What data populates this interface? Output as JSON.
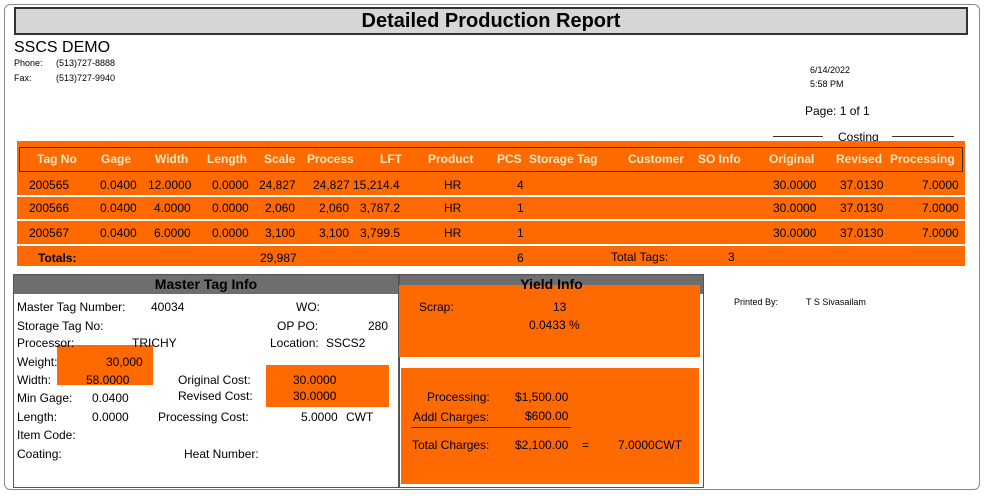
{
  "report": {
    "title": "Detailed Production Report",
    "company": "SSCS DEMO",
    "phone_label": "Phone:",
    "phone": "(513)727-8888",
    "fax_label": "Fax:",
    "fax": "(513)727-9940",
    "date": "6/14/2022",
    "time": "5:58 PM",
    "page": "Page: 1 of 1",
    "costing_label": "Costing"
  },
  "table": {
    "headers": {
      "tag_no": "Tag No",
      "gage": "Gage",
      "width": "Width",
      "length": "Length",
      "scale": "Scale",
      "process": "Process",
      "lft": "LFT",
      "product": "Product",
      "pcs": "PCS",
      "storage_tag": "Storage Tag",
      "customer": "Customer",
      "so_info": "SO Info",
      "original": "Original",
      "revised": "Revised",
      "processing": "Processing"
    },
    "rows": [
      {
        "tag_no": "200565",
        "gage": "0.0400",
        "width": "12.0000",
        "length": "0.0000",
        "scale": "24,827",
        "process": "24,827",
        "lft": "15,214.4",
        "product": "HR",
        "pcs": "4",
        "original": "30.0000",
        "revised": "37.0130",
        "processing": "7.0000"
      },
      {
        "tag_no": "200566",
        "gage": "0.0400",
        "width": "4.0000",
        "length": "0.0000",
        "scale": "2,060",
        "process": "2,060",
        "lft": "3,787.2",
        "product": "HR",
        "pcs": "1",
        "original": "30.0000",
        "revised": "37.0130",
        "processing": "7.0000"
      },
      {
        "tag_no": "200567",
        "gage": "0.0400",
        "width": "6.0000",
        "length": "0.0000",
        "scale": "3,100",
        "process": "3,100",
        "lft": "3,799.5",
        "product": "HR",
        "pcs": "1",
        "original": "30.0000",
        "revised": "37.0130",
        "processing": "7.0000"
      }
    ],
    "totals": {
      "label": "Totals:",
      "scale": "29,987",
      "pcs": "6",
      "total_tags_label": "Total Tags:",
      "total_tags": "3"
    }
  },
  "master": {
    "heading": "Master Tag Info",
    "master_tag_number_label": "Master Tag Number:",
    "master_tag_number": "40034",
    "wo_label": "WO:",
    "storage_tag_label": "Storage Tag No:",
    "op_po_label": "OP PO:",
    "op_po": "280",
    "processor_label": "Processor:",
    "processor": "TRICHY",
    "location_label": "Location:",
    "location": "SSCS2",
    "weight_label": "Weight:",
    "weight": "30,000",
    "width_label": "Width:",
    "width": "58.0000",
    "original_cost_label": "Original Cost:",
    "original_cost": "30.0000",
    "min_gage_label": "Min Gage:",
    "min_gage": "0.0400",
    "revised_cost_label": "Revised Cost:",
    "revised_cost": "30.0000",
    "length_label": "Length:",
    "length": "0.0000",
    "processing_cost_label": "Processing Cost:",
    "processing_cost": "5.0000",
    "processing_cost_unit": "CWT",
    "item_code_label": "Item Code:",
    "coating_label": "Coating:",
    "heat_number_label": "Heat Number:"
  },
  "yield": {
    "heading": "Yield Info",
    "scrap_label": "Scrap:",
    "scrap": "13",
    "scrap_pct": "0.0433 %",
    "processing_label": "Processing:",
    "processing": "$1,500.00",
    "addl_label": "Addl Charges:",
    "addl": "$600.00",
    "total_label": "Total Charges:",
    "total": "$2,100.00",
    "equals": "=",
    "total_cwt": "7.0000CWT"
  },
  "printed_by": {
    "label": "Printed By:",
    "name": "T S Sivasailam"
  },
  "colors": {
    "accent": "#ff6a00",
    "header_text": "#f4e9c4",
    "section_header_bg": "#6e6e6e"
  }
}
